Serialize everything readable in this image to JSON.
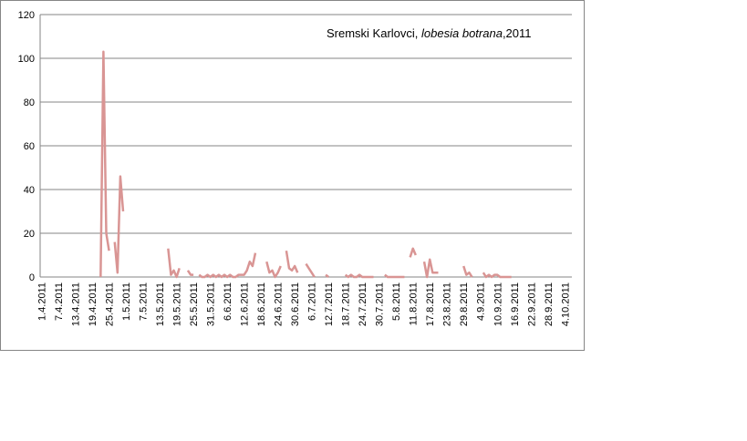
{
  "chart_data": {
    "type": "line",
    "title": {
      "prefix": "Sremski Karlovci, ",
      "species": "lobesia botrana",
      "suffix": ",2011"
    },
    "categories": [
      "1.4.2011",
      null,
      null,
      null,
      null,
      null,
      "7.4.2011",
      null,
      null,
      null,
      null,
      null,
      "13.4.2011",
      null,
      null,
      null,
      null,
      null,
      "19.4.2011",
      null,
      null,
      null,
      null,
      null,
      "25.4.2011",
      null,
      null,
      null,
      null,
      null,
      "1.5.2011",
      null,
      null,
      null,
      null,
      null,
      "7.5.2011",
      null,
      null,
      null,
      null,
      null,
      "13.5.2011",
      null,
      null,
      null,
      null,
      null,
      "19.5.2011",
      null,
      null,
      null,
      null,
      null,
      "25.5.2011",
      null,
      null,
      null,
      null,
      null,
      "31.5.2011",
      null,
      null,
      null,
      null,
      null,
      "6.6.2011",
      null,
      null,
      null,
      null,
      null,
      "12.6.2011",
      null,
      null,
      null,
      null,
      null,
      "18.6.2011",
      null,
      null,
      null,
      null,
      null,
      "24.6.2011",
      null,
      null,
      null,
      null,
      null,
      "30.6.2011",
      null,
      null,
      null,
      null,
      null,
      "6.7.2011",
      null,
      null,
      null,
      null,
      null,
      "12.7.2011",
      null,
      null,
      null,
      null,
      null,
      "18.7.2011",
      null,
      null,
      null,
      null,
      null,
      "24.7.2011",
      null,
      null,
      null,
      null,
      null,
      "30.7.2011",
      null,
      null,
      null,
      null,
      null,
      "5.8.2011",
      null,
      null,
      null,
      null,
      null,
      "11.8.2011",
      null,
      null,
      null,
      null,
      null,
      "17.8.2011",
      null,
      null,
      null,
      null,
      null,
      "23.8.2011",
      null,
      null,
      null,
      null,
      null,
      "29.8.2011",
      null,
      null,
      null,
      null,
      null,
      "4.9.2011",
      null,
      null,
      null,
      null,
      null,
      "10.9.2011",
      null,
      null,
      null,
      null,
      null,
      "16.9.2011",
      null,
      null,
      null,
      null,
      null,
      "22.9.2011",
      null,
      null,
      null,
      null,
      null,
      "28.9.2011",
      null,
      null,
      null,
      null,
      null,
      "4.10.2011",
      null,
      null
    ],
    "series": [
      {
        "color": "#d99594",
        "values": [
          null,
          null,
          null,
          null,
          null,
          null,
          null,
          null,
          null,
          null,
          null,
          null,
          null,
          null,
          null,
          null,
          null,
          null,
          null,
          null,
          null,
          0,
          103,
          20,
          12,
          null,
          16,
          2,
          46,
          30,
          null,
          null,
          null,
          null,
          null,
          null,
          null,
          null,
          null,
          null,
          null,
          null,
          null,
          null,
          null,
          13,
          1,
          3,
          0,
          4,
          null,
          null,
          3,
          1,
          1,
          null,
          1,
          0,
          0,
          1,
          0,
          1,
          0,
          1,
          0,
          1,
          0,
          1,
          0,
          0,
          1,
          1,
          1,
          3,
          7,
          5,
          11,
          null,
          null,
          null,
          7,
          2,
          3,
          0,
          2,
          5,
          null,
          12,
          4,
          3,
          5,
          2,
          null,
          null,
          6,
          4,
          2,
          0,
          null,
          null,
          null,
          1,
          0,
          null,
          null,
          null,
          null,
          null,
          1,
          0,
          1,
          0,
          0,
          1,
          0,
          0,
          0,
          0,
          0,
          null,
          null,
          null,
          1,
          0,
          0,
          0,
          0,
          0,
          0,
          0,
          null,
          9,
          13,
          10,
          null,
          null,
          7,
          0,
          8,
          2,
          2,
          2,
          null,
          null,
          null,
          null,
          null,
          null,
          null,
          null,
          5,
          1,
          2,
          0,
          null,
          null,
          null,
          2,
          0,
          1,
          0,
          1,
          1,
          0,
          0,
          0,
          0,
          0,
          null,
          null,
          null,
          null,
          null,
          null,
          null,
          null,
          null,
          null,
          null,
          null,
          null,
          null,
          null,
          null,
          null,
          null,
          null,
          null,
          null
        ]
      }
    ],
    "ylim": [
      0,
      120
    ],
    "yticks": [
      0,
      20,
      40,
      60,
      80,
      100,
      120
    ],
    "grid": true
  }
}
